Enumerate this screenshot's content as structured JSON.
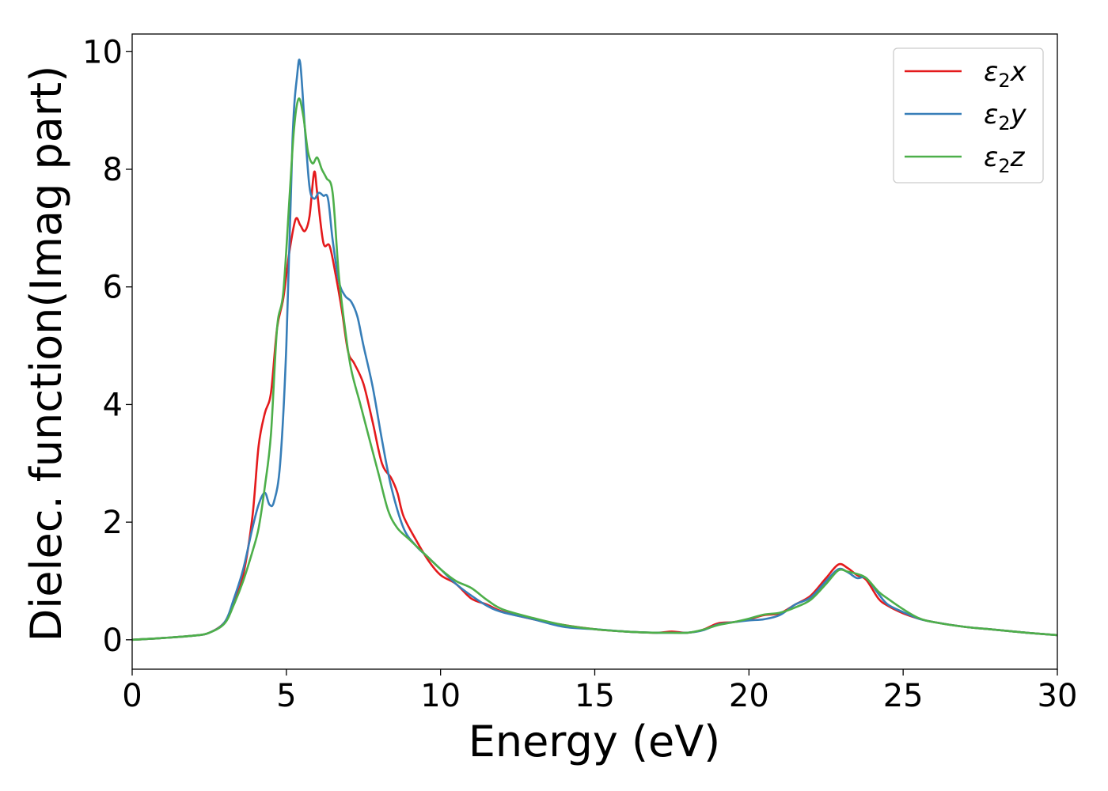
{
  "chart_data": {
    "type": "line",
    "xlabel": "Energy (eV)",
    "ylabel": "Dielec. function(Imag part)",
    "xlim": [
      0,
      30
    ],
    "ylim": [
      -0.5,
      10.3
    ],
    "xticks": [
      0,
      5,
      10,
      15,
      20,
      25,
      30
    ],
    "yticks": [
      0,
      2,
      4,
      6,
      8,
      10
    ],
    "grid": false,
    "legend_position": "top-right",
    "series": [
      {
        "name": "ε₂x",
        "legend_symbol": "ε",
        "legend_sub": "2",
        "legend_var": "x",
        "color": "#e41a1c",
        "x": [
          0,
          1,
          2,
          2.5,
          3.0,
          3.3,
          3.6,
          3.9,
          4.1,
          4.3,
          4.5,
          4.7,
          4.9,
          5.1,
          5.3,
          5.45,
          5.6,
          5.75,
          5.9,
          6.0,
          6.2,
          6.4,
          6.6,
          6.8,
          7.0,
          7.2,
          7.5,
          7.8,
          8.1,
          8.4,
          8.6,
          8.8,
          9.2,
          9.6,
          10.0,
          10.5,
          11.0,
          11.5,
          12.0,
          13.0,
          14.0,
          15.0,
          16.0,
          17.0,
          17.5,
          18.0,
          18.5,
          19.0,
          19.5,
          20.0,
          20.5,
          21.0,
          21.5,
          22.0,
          22.5,
          22.9,
          23.2,
          23.5,
          23.8,
          24.2,
          24.5,
          25.0,
          25.5,
          26.0,
          27.0,
          28.0,
          29.0,
          30.0
        ],
        "y": [
          0.0,
          0.03,
          0.07,
          0.12,
          0.3,
          0.65,
          1.1,
          2.1,
          3.3,
          3.85,
          4.2,
          5.3,
          5.8,
          6.6,
          7.15,
          7.05,
          6.95,
          7.2,
          7.95,
          7.6,
          6.75,
          6.7,
          6.2,
          5.6,
          4.9,
          4.7,
          4.35,
          3.7,
          3.0,
          2.75,
          2.5,
          2.1,
          1.7,
          1.35,
          1.1,
          0.95,
          0.7,
          0.6,
          0.48,
          0.35,
          0.25,
          0.18,
          0.14,
          0.12,
          0.14,
          0.12,
          0.17,
          0.28,
          0.3,
          0.35,
          0.42,
          0.45,
          0.6,
          0.75,
          1.05,
          1.28,
          1.22,
          1.1,
          1.02,
          0.7,
          0.58,
          0.45,
          0.36,
          0.3,
          0.22,
          0.17,
          0.12,
          0.08
        ]
      },
      {
        "name": "ε₂y",
        "legend_symbol": "ε",
        "legend_sub": "2",
        "legend_var": "y",
        "color": "#377eb8",
        "x": [
          0,
          1,
          2,
          2.5,
          3.0,
          3.3,
          3.6,
          3.9,
          4.1,
          4.3,
          4.45,
          4.6,
          4.8,
          5.0,
          5.2,
          5.35,
          5.45,
          5.6,
          5.75,
          5.9,
          6.05,
          6.2,
          6.35,
          6.5,
          6.7,
          6.9,
          7.1,
          7.3,
          7.5,
          7.8,
          8.1,
          8.4,
          8.8,
          9.2,
          9.6,
          10.0,
          10.5,
          11.0,
          11.5,
          12.0,
          13.0,
          14.0,
          15.0,
          16.0,
          17.0,
          17.5,
          18.0,
          18.5,
          19.0,
          19.5,
          20.0,
          20.5,
          21.0,
          21.5,
          22.0,
          22.5,
          22.9,
          23.2,
          23.5,
          23.8,
          24.2,
          24.5,
          25.0,
          25.5,
          26.0,
          27.0,
          28.0,
          29.0,
          30.0
        ],
        "y": [
          0.0,
          0.03,
          0.07,
          0.12,
          0.3,
          0.7,
          1.2,
          1.9,
          2.3,
          2.5,
          2.3,
          2.35,
          3.0,
          5.0,
          8.5,
          9.6,
          9.8,
          8.7,
          7.7,
          7.5,
          7.6,
          7.55,
          7.5,
          6.8,
          6.1,
          5.85,
          5.75,
          5.5,
          5.0,
          4.3,
          3.4,
          2.6,
          1.9,
          1.6,
          1.4,
          1.2,
          0.95,
          0.75,
          0.58,
          0.47,
          0.35,
          0.22,
          0.18,
          0.14,
          0.12,
          0.12,
          0.12,
          0.16,
          0.26,
          0.3,
          0.33,
          0.35,
          0.42,
          0.6,
          0.72,
          1.0,
          1.2,
          1.15,
          1.05,
          1.05,
          0.78,
          0.6,
          0.47,
          0.36,
          0.3,
          0.22,
          0.17,
          0.12,
          0.08
        ]
      },
      {
        "name": "ε₂z",
        "legend_symbol": "ε",
        "legend_sub": "2",
        "legend_var": "z",
        "color": "#4daf4a",
        "x": [
          0,
          1,
          2,
          2.5,
          3.0,
          3.3,
          3.6,
          3.9,
          4.1,
          4.3,
          4.5,
          4.7,
          4.9,
          5.1,
          5.25,
          5.4,
          5.55,
          5.7,
          5.85,
          6.0,
          6.15,
          6.3,
          6.5,
          6.7,
          6.9,
          7.1,
          7.4,
          7.7,
          8.0,
          8.3,
          8.6,
          9.0,
          9.5,
          10.0,
          10.5,
          11.0,
          11.5,
          12.0,
          13.0,
          14.0,
          15.0,
          16.0,
          17.0,
          17.5,
          18.0,
          18.5,
          19.0,
          19.5,
          20.0,
          20.5,
          21.0,
          21.5,
          22.0,
          22.5,
          22.9,
          23.2,
          23.5,
          23.8,
          24.2,
          24.5,
          25.0,
          25.5,
          26.0,
          27.0,
          28.0,
          29.0,
          30.0
        ],
        "y": [
          0.0,
          0.03,
          0.07,
          0.12,
          0.28,
          0.6,
          1.0,
          1.5,
          1.9,
          2.6,
          3.5,
          5.3,
          5.9,
          7.5,
          8.7,
          9.2,
          8.9,
          8.3,
          8.1,
          8.2,
          8.0,
          7.85,
          7.6,
          6.2,
          5.3,
          4.6,
          4.0,
          3.4,
          2.8,
          2.2,
          1.9,
          1.7,
          1.45,
          1.2,
          1.0,
          0.88,
          0.68,
          0.52,
          0.37,
          0.25,
          0.18,
          0.14,
          0.12,
          0.12,
          0.12,
          0.17,
          0.25,
          0.3,
          0.36,
          0.43,
          0.46,
          0.55,
          0.68,
          0.95,
          1.18,
          1.16,
          1.12,
          1.05,
          0.82,
          0.7,
          0.52,
          0.37,
          0.3,
          0.22,
          0.17,
          0.12,
          0.08
        ]
      }
    ]
  }
}
